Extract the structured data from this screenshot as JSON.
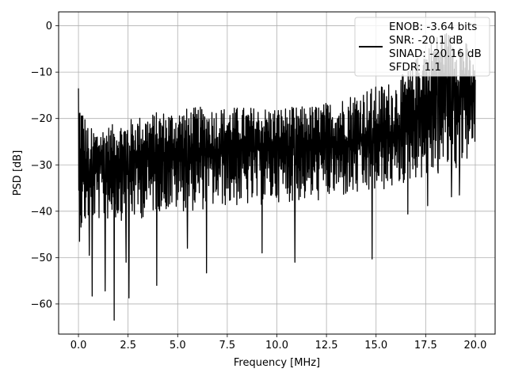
{
  "chart_data": {
    "type": "line",
    "title": "",
    "xlabel": "Frequency [MHz]",
    "ylabel": "PSD [dB]",
    "xlim": [
      -1.0,
      21.0
    ],
    "ylim": [
      -66.5,
      3.0
    ],
    "xticks": [
      0.0,
      2.5,
      5.0,
      7.5,
      10.0,
      12.5,
      15.0,
      17.5,
      20.0
    ],
    "xtick_labels": [
      "0.0",
      "2.5",
      "5.0",
      "7.5",
      "10.0",
      "12.5",
      "15.0",
      "17.5",
      "20.0"
    ],
    "yticks": [
      0,
      -10,
      -20,
      -30,
      -40,
      -50,
      -60
    ],
    "ytick_labels": [
      "0",
      "−10",
      "−20",
      "−30",
      "−40",
      "−50",
      "−60"
    ],
    "grid": true,
    "legend": {
      "placement": "upper-right",
      "entries": [
        "ENOB: -3.64 bits",
        "SNR: -20.1 dB",
        "SINAD: -20.16 dB",
        "SFDR: 1.1"
      ]
    },
    "series": [
      {
        "color": "#000000",
        "envelope": {
          "x": [
            0.0,
            0.5,
            1.0,
            2.0,
            3.0,
            4.0,
            5.0,
            6.0,
            7.0,
            8.0,
            9.0,
            10.0,
            11.0,
            12.0,
            13.0,
            14.0,
            15.0,
            16.0,
            16.5,
            17.0,
            17.5,
            18.0,
            18.5,
            19.0,
            19.5,
            20.0
          ],
          "upper": [
            -13.5,
            -22.0,
            -22.0,
            -21.0,
            -19.5,
            -18.5,
            -18.0,
            -17.5,
            -17.5,
            -17.5,
            -17.5,
            -17.5,
            -17.5,
            -17.0,
            -16.0,
            -14.0,
            -13.0,
            -11.5,
            -10.0,
            -7.0,
            -4.0,
            -2.0,
            -1.0,
            -2.0,
            -3.0,
            -9.0
          ],
          "baseline": [
            -30.0,
            -31.0,
            -30.0,
            -29.0,
            -28.5,
            -28.0,
            -27.5,
            -27.0,
            -27.0,
            -26.5,
            -26.5,
            -26.5,
            -26.0,
            -26.0,
            -25.5,
            -25.0,
            -24.5,
            -23.5,
            -22.0,
            -19.0,
            -16.0,
            -13.0,
            -12.0,
            -13.0,
            -14.0,
            -16.0
          ],
          "lower": [
            -46.0,
            -42.0,
            -42.0,
            -42.0,
            -42.0,
            -40.0,
            -40.0,
            -40.0,
            -39.0,
            -39.0,
            -39.0,
            -38.0,
            -38.0,
            -38.0,
            -37.0,
            -37.0,
            -36.0,
            -35.0,
            -34.0,
            -33.0,
            -33.0,
            -33.0,
            -32.0,
            -32.0,
            -30.0,
            -26.0
          ]
        },
        "dips": [
          {
            "x": 0.05,
            "y": -46.5
          },
          {
            "x": 0.55,
            "y": -49.5
          },
          {
            "x": 0.7,
            "y": -58.3
          },
          {
            "x": 1.35,
            "y": -57.2
          },
          {
            "x": 1.8,
            "y": -63.5
          },
          {
            "x": 2.4,
            "y": -51.0
          },
          {
            "x": 2.55,
            "y": -58.7
          },
          {
            "x": 3.95,
            "y": -56.0
          },
          {
            "x": 5.5,
            "y": -48.0
          },
          {
            "x": 6.45,
            "y": -53.3
          },
          {
            "x": 9.25,
            "y": -49.0
          },
          {
            "x": 10.9,
            "y": -51.0
          },
          {
            "x": 14.8,
            "y": -50.3
          },
          {
            "x": 16.6,
            "y": -40.6
          },
          {
            "x": 17.6,
            "y": -38.8
          },
          {
            "x": 18.1,
            "y": -31.0
          },
          {
            "x": 18.8,
            "y": -36.9
          },
          {
            "x": 19.2,
            "y": -36.5
          }
        ]
      }
    ]
  }
}
